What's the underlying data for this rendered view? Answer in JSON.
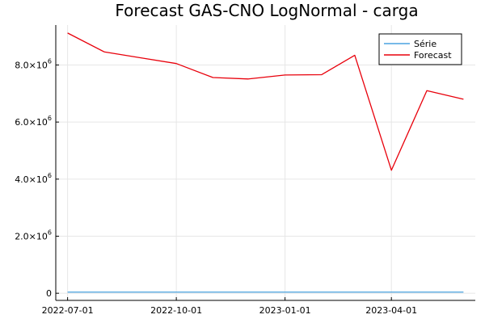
{
  "chart_data": {
    "type": "line",
    "title": "Forecast GAS-CNO LogNormal - carga",
    "xlabel": "",
    "ylabel": "",
    "x_axis_type": "date",
    "x": [
      "2022-07-01",
      "2022-08-01",
      "2022-09-01",
      "2022-10-01",
      "2022-11-01",
      "2022-12-01",
      "2023-01-01",
      "2023-02-01",
      "2023-03-01",
      "2023-04-01",
      "2023-05-01",
      "2023-06-01"
    ],
    "xlim": [
      "2022-06-21",
      "2023-06-11"
    ],
    "ylim": [
      -250000,
      9400000
    ],
    "x_ticks": [
      {
        "value": "2022-07-01",
        "label": "2022-07-01"
      },
      {
        "value": "2022-10-01",
        "label": "2022-10-01"
      },
      {
        "value": "2023-01-01",
        "label": "2023-01-01"
      },
      {
        "value": "2023-04-01",
        "label": "2023-04-01"
      }
    ],
    "y_ticks": [
      {
        "value": 0,
        "mantissa": "0",
        "exponent": ""
      },
      {
        "value": 2000000,
        "mantissa": "2.0×10",
        "exponent": "6"
      },
      {
        "value": 4000000,
        "mantissa": "4.0×10",
        "exponent": "6"
      },
      {
        "value": 6000000,
        "mantissa": "6.0×10",
        "exponent": "6"
      },
      {
        "value": 8000000,
        "mantissa": "8.0×10",
        "exponent": "6"
      }
    ],
    "grid": true,
    "legend_position": "top-right",
    "series": [
      {
        "name": "Série",
        "color": "#4aa3e0",
        "values": [
          40000,
          40000,
          40000,
          40000,
          40000,
          40000,
          40000,
          40000,
          40000,
          40000,
          40000,
          40000
        ]
      },
      {
        "name": "Forecast",
        "color": "#e8000b",
        "values": [
          9120000,
          8460000,
          8250000,
          8050000,
          7560000,
          7510000,
          7650000,
          7660000,
          8340000,
          4310000,
          7100000,
          6800000
        ]
      }
    ]
  }
}
